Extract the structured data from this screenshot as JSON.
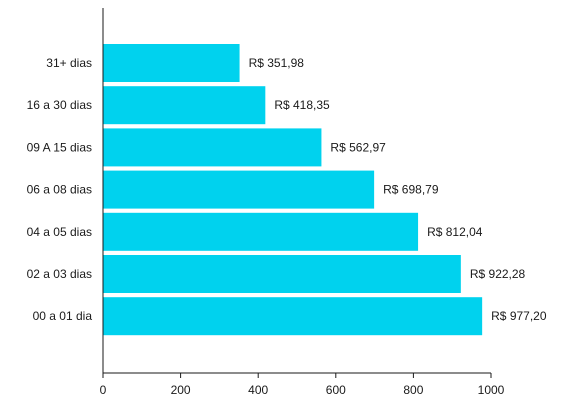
{
  "chart_data": {
    "type": "bar",
    "orientation": "horizontal",
    "categories": [
      "31+ dias",
      "16 a 30 dias",
      "09 A 15 dias",
      "06 a 08 dias",
      "04 a 05 dias",
      "02 a 03 dias",
      "00 a 01 dia"
    ],
    "values": [
      351.98,
      418.35,
      562.97,
      698.79,
      812.04,
      922.28,
      977.2
    ],
    "data_labels": [
      "R$ 351,98",
      "R$ 418,35",
      "R$ 562,97",
      "R$ 698,79",
      "R$ 812,04",
      "R$ 922,28",
      "R$ 977,20"
    ],
    "xlim": [
      0,
      1000
    ],
    "xticks": [
      0,
      200,
      400,
      600,
      800,
      1000
    ],
    "xtick_labels": [
      "0",
      "200",
      "400",
      "600",
      "800",
      "1000"
    ],
    "bar_color": "#00d2ee",
    "grid": false,
    "title": "",
    "xlabel": "",
    "ylabel": ""
  }
}
